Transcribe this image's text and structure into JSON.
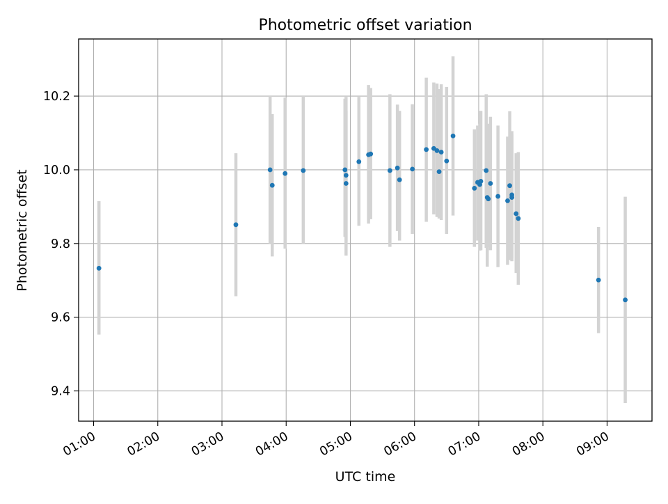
{
  "chart_data": {
    "type": "scatter",
    "title": "Photometric offset variation",
    "xlabel": "UTC time",
    "ylabel": "Photometric offset",
    "x_tick_labels": [
      "01:00",
      "02:00",
      "03:00",
      "04:00",
      "05:00",
      "06:00",
      "07:00",
      "08:00",
      "09:00"
    ],
    "y_tick_labels": [
      "9.4",
      "9.6",
      "9.8",
      "10.0",
      "10.2"
    ],
    "ylim": [
      9.318,
      10.355
    ],
    "xlim": [
      "00:46",
      "09:42"
    ],
    "grid": true,
    "colors": {
      "point": "#1f77b4",
      "errorbar": "#d3d3d3",
      "grid": "#b0b0b0"
    },
    "series": [
      {
        "points": [
          {
            "x": "01:05",
            "y": 9.733,
            "lo": 9.553,
            "hi": 9.915
          },
          {
            "x": "03:13",
            "y": 9.851,
            "lo": 9.657,
            "hi": 10.045
          },
          {
            "x": "03:45",
            "y": 10.0,
            "lo": 9.8,
            "hi": 10.2
          },
          {
            "x": "03:47",
            "y": 9.958,
            "lo": 9.765,
            "hi": 10.151
          },
          {
            "x": "03:59",
            "y": 9.99,
            "lo": 9.786,
            "hi": 10.196
          },
          {
            "x": "04:16",
            "y": 9.998,
            "lo": 9.8,
            "hi": 10.2
          },
          {
            "x": "04:55",
            "y": 10.0,
            "lo": 9.818,
            "hi": 10.193
          },
          {
            "x": "04:56",
            "y": 9.985,
            "lo": 9.805,
            "hi": 10.198
          },
          {
            "x": "04:56",
            "y": 9.963,
            "lo": 9.767,
            "hi": 10.16
          },
          {
            "x": "05:08",
            "y": 10.022,
            "lo": 9.848,
            "hi": 10.198
          },
          {
            "x": "05:17",
            "y": 10.041,
            "lo": 9.854,
            "hi": 10.23
          },
          {
            "x": "05:19",
            "y": 10.043,
            "lo": 9.866,
            "hi": 10.222
          },
          {
            "x": "05:37",
            "y": 9.998,
            "lo": 9.791,
            "hi": 10.205
          },
          {
            "x": "05:44",
            "y": 10.005,
            "lo": 9.834,
            "hi": 10.177
          },
          {
            "x": "05:46",
            "y": 9.973,
            "lo": 9.808,
            "hi": 10.16
          },
          {
            "x": "05:58",
            "y": 10.002,
            "lo": 9.826,
            "hi": 10.178
          },
          {
            "x": "06:11",
            "y": 10.055,
            "lo": 9.859,
            "hi": 10.25
          },
          {
            "x": "06:18",
            "y": 10.058,
            "lo": 9.879,
            "hi": 10.237
          },
          {
            "x": "06:21",
            "y": 10.052,
            "lo": 9.872,
            "hi": 10.234
          },
          {
            "x": "06:23",
            "y": 9.995,
            "lo": 9.868,
            "hi": 10.219
          },
          {
            "x": "06:25",
            "y": 10.048,
            "lo": 9.864,
            "hi": 10.232
          },
          {
            "x": "06:30",
            "y": 10.024,
            "lo": 9.826,
            "hi": 10.225
          },
          {
            "x": "06:36",
            "y": 10.092,
            "lo": 9.876,
            "hi": 10.308
          },
          {
            "x": "06:56",
            "y": 9.95,
            "lo": 9.791,
            "hi": 10.11
          },
          {
            "x": "06:59",
            "y": 9.966,
            "lo": 9.808,
            "hi": 10.12
          },
          {
            "x": "07:01",
            "y": 9.96,
            "lo": 9.781,
            "hi": 10.125
          },
          {
            "x": "07:02",
            "y": 9.969,
            "lo": 9.782,
            "hi": 10.16
          },
          {
            "x": "07:07",
            "y": 9.998,
            "lo": 9.788,
            "hi": 10.205
          },
          {
            "x": "07:08",
            "y": 9.925,
            "lo": 9.737,
            "hi": 10.113
          },
          {
            "x": "07:09",
            "y": 9.921,
            "lo": 9.79,
            "hi": 10.125
          },
          {
            "x": "07:11",
            "y": 9.963,
            "lo": 9.782,
            "hi": 10.144
          },
          {
            "x": "07:18",
            "y": 9.928,
            "lo": 9.736,
            "hi": 10.12
          },
          {
            "x": "07:27",
            "y": 9.916,
            "lo": 9.742,
            "hi": 10.09
          },
          {
            "x": "07:29",
            "y": 9.957,
            "lo": 9.755,
            "hi": 10.159
          },
          {
            "x": "07:31",
            "y": 9.932,
            "lo": 9.76,
            "hi": 10.105
          },
          {
            "x": "07:31",
            "y": 9.925,
            "lo": 9.752,
            "hi": 10.096
          },
          {
            "x": "07:35",
            "y": 9.881,
            "lo": 9.72,
            "hi": 10.045
          },
          {
            "x": "07:37",
            "y": 9.868,
            "lo": 9.688,
            "hi": 10.048
          },
          {
            "x": "08:52",
            "y": 9.701,
            "lo": 9.557,
            "hi": 9.845
          },
          {
            "x": "09:17",
            "y": 9.647,
            "lo": 9.367,
            "hi": 9.927
          }
        ]
      }
    ]
  }
}
